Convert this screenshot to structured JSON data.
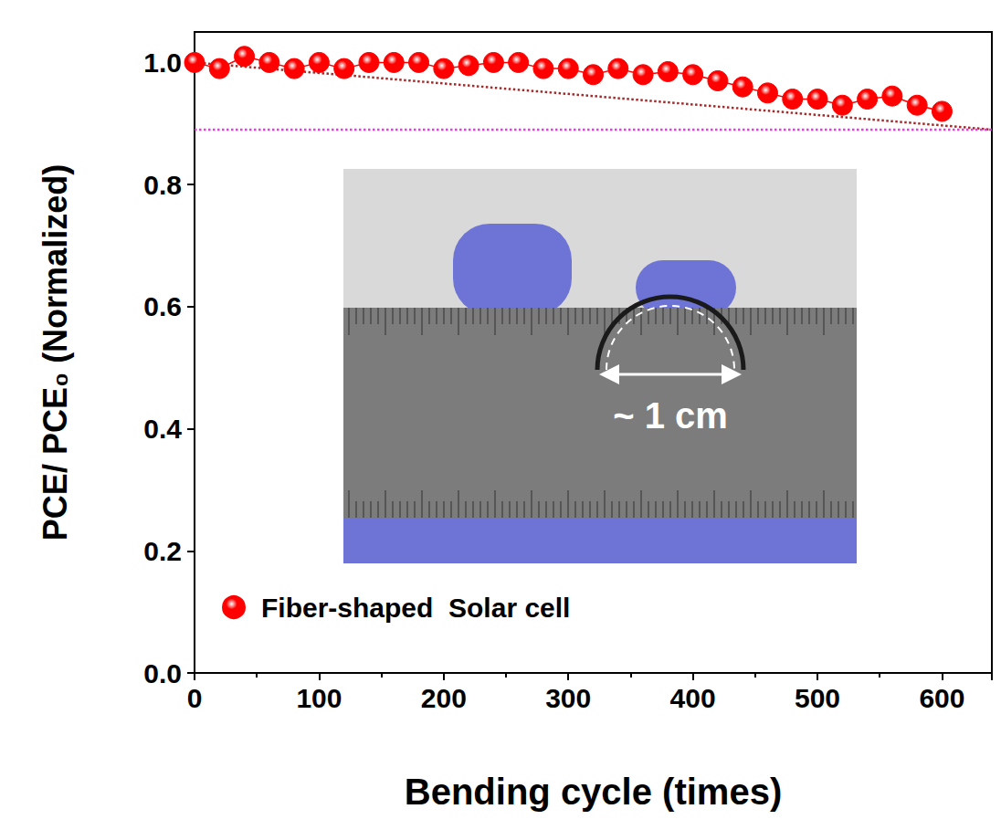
{
  "chart_data": {
    "type": "line",
    "x_label": "Bending cycle (times)",
    "y_label": "PCE/ PCE₀ (Normalized)",
    "annotations": [
      "~ 1 cm"
    ],
    "xlim": [
      0,
      640
    ],
    "xticks": [
      0,
      100,
      200,
      300,
      400,
      500,
      600
    ],
    "ylim": [
      0,
      1.05
    ],
    "yticks": [
      {
        "value": 0,
        "label": "0.0"
      },
      {
        "value": 0.2,
        "label": "0.2"
      },
      {
        "value": 0.4,
        "label": "0.4"
      },
      {
        "value": 0.6,
        "label": "0.6"
      },
      {
        "value": 0.8,
        "label": "0.8"
      },
      {
        "value": 1,
        "label": "1.0"
      }
    ],
    "grid": false,
    "legend": "lower left",
    "series": [
      {
        "name": "Fiber-shaped  Solar cell",
        "color": "#ff0000",
        "marker": "circle",
        "line_style": "solid",
        "x": [
          0,
          20,
          40,
          60,
          80,
          100,
          120,
          140,
          160,
          180,
          200,
          220,
          240,
          260,
          280,
          300,
          320,
          340,
          360,
          380,
          400,
          420,
          440,
          460,
          480,
          500,
          520,
          540,
          560,
          580,
          600
        ],
        "values": [
          1.0,
          0.99,
          1.01,
          1.0,
          0.99,
          1.0,
          0.99,
          1.0,
          1.0,
          1.0,
          0.99,
          0.995,
          1.0,
          1.0,
          0.99,
          0.99,
          0.98,
          0.99,
          0.98,
          0.985,
          0.98,
          0.97,
          0.96,
          0.95,
          0.94,
          0.94,
          0.93,
          0.94,
          0.945,
          0.93,
          0.92
        ]
      },
      {
        "color": "#a52a2a",
        "marker": "none",
        "line_style": "dotted",
        "x": [
          0,
          640
        ],
        "values": [
          1.0,
          0.89
        ]
      },
      {
        "color": "#e040e0",
        "marker": "none",
        "line_style": "dotted",
        "x": [
          0,
          640
        ],
        "values": [
          0.89,
          0.89
        ]
      }
    ]
  }
}
